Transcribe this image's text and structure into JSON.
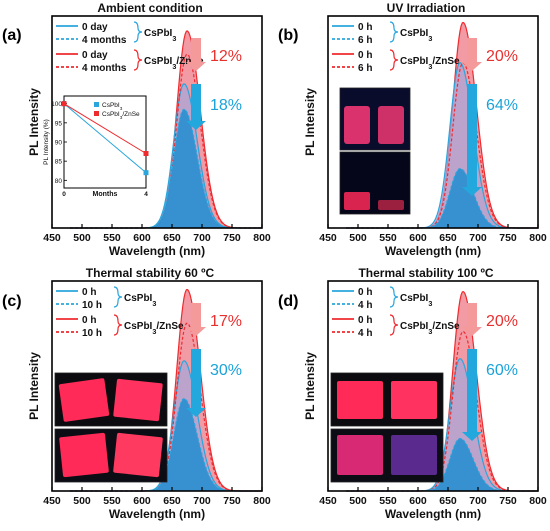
{
  "colors": {
    "cspbi3": "#2aa6dc",
    "cspbi3_fill": "#2f8fd0",
    "cspbi3_zns": "#ee2b2f",
    "cspbi3_zns_fill": "#f08a94",
    "arrow_red": "#f59a9a",
    "arrow_blue": "#22a8dc",
    "pct_red": "#e8302f",
    "pct_blue": "#1aa3d9"
  },
  "chart_data": [
    {
      "panel_label": "(a)",
      "type": "line",
      "title": "Ambient condition",
      "xlabel": "Wavelength (nm)",
      "ylabel": "PL Intensity",
      "xlim": [
        450,
        800
      ],
      "xticks": [
        "450",
        "500",
        "550",
        "600",
        "650",
        "700",
        "750",
        "800"
      ],
      "legend": [
        {
          "label": "0 day",
          "style": "solid",
          "color": "blue"
        },
        {
          "label": "4 months",
          "style": "dashed",
          "color": "blue"
        },
        {
          "label": "0 day",
          "style": "solid",
          "color": "red"
        },
        {
          "label": "4 months",
          "style": "dashed",
          "color": "red"
        }
      ],
      "groups": [
        "CsPbI3",
        "CsPbI3/ZnSe"
      ],
      "group_html": [
        "CsPbI<tspan baseline-shift=\"sub\" font-size=\"7\">3</tspan>",
        "CsPbI<tspan baseline-shift=\"sub\" font-size=\"7\">3</tspan>/ZnSe"
      ],
      "series": [
        {
          "group": "CsPbI3",
          "state": "initial",
          "peak_x": 670,
          "peak_y": 0.68
        },
        {
          "group": "CsPbI3",
          "state": "aged",
          "peak_x": 670,
          "peak_y": 0.56
        },
        {
          "group": "CsPbI3/ZnSe",
          "state": "initial",
          "peak_x": 675,
          "peak_y": 0.93
        },
        {
          "group": "CsPbI3/ZnSe",
          "state": "aged",
          "peak_x": 675,
          "peak_y": 0.82
        }
      ],
      "red_percent": "12%",
      "blue_percent": "18%",
      "inset": {
        "xlabel": "Months",
        "ylabel": "PL Intensity (%)",
        "xticks": [
          "0",
          "4"
        ],
        "yticks": [
          "80",
          "85",
          "90",
          "95",
          "100"
        ],
        "ylim": [
          78,
          102
        ],
        "series": [
          {
            "name": "CsPbI3",
            "x": [
              0,
              4
            ],
            "y": [
              100,
              82
            ]
          },
          {
            "name": "CsPbI3/ZnSe",
            "x": [
              0,
              4
            ],
            "y": [
              100,
              87
            ]
          }
        ]
      }
    },
    {
      "panel_label": "(b)",
      "type": "line",
      "title": "UV Irradiation",
      "xlabel": "Wavelength (nm)",
      "ylabel": "PL Intensity",
      "xlim": [
        450,
        800
      ],
      "xticks": [
        "450",
        "500",
        "550",
        "600",
        "650",
        "700",
        "750",
        "800"
      ],
      "legend": [
        {
          "label": "0 h",
          "style": "solid",
          "color": "blue"
        },
        {
          "label": "6 h",
          "style": "dashed",
          "color": "blue"
        },
        {
          "label": "0 h",
          "style": "solid",
          "color": "red"
        },
        {
          "label": "6 h",
          "style": "dashed",
          "color": "red"
        }
      ],
      "groups": [
        "CsPbI3",
        "CsPbI3/ZnSe"
      ],
      "series": [
        {
          "group": "CsPbI3",
          "state": "initial",
          "peak_x": 670,
          "peak_y": 0.78
        },
        {
          "group": "CsPbI3",
          "state": "aged",
          "peak_x": 670,
          "peak_y": 0.28
        },
        {
          "group": "CsPbI3/ZnSe",
          "state": "initial",
          "peak_x": 675,
          "peak_y": 0.97
        },
        {
          "group": "CsPbI3/ZnSe",
          "state": "aged",
          "peak_x": 675,
          "peak_y": 0.78
        }
      ],
      "red_percent": "20%",
      "blue_percent": "64%"
    },
    {
      "panel_label": "(c)",
      "type": "line",
      "title": "Thermal stability 60 ºC",
      "xlabel": "Wavelength (nm)",
      "ylabel": "PL Intensity",
      "xlim": [
        450,
        800
      ],
      "xticks": [
        "450",
        "500",
        "550",
        "600",
        "650",
        "700",
        "750",
        "800"
      ],
      "legend": [
        {
          "label": "0 h",
          "style": "solid",
          "color": "blue"
        },
        {
          "label": "10 h",
          "style": "dashed",
          "color": "blue"
        },
        {
          "label": "0 h",
          "style": "solid",
          "color": "red"
        },
        {
          "label": "10 h",
          "style": "dashed",
          "color": "red"
        }
      ],
      "groups": [
        "CsPbI3",
        "CsPbI3/ZnSe"
      ],
      "series": [
        {
          "group": "CsPbI3",
          "state": "initial",
          "peak_x": 670,
          "peak_y": 0.62
        },
        {
          "group": "CsPbI3",
          "state": "aged",
          "peak_x": 670,
          "peak_y": 0.44
        },
        {
          "group": "CsPbI3/ZnSe",
          "state": "initial",
          "peak_x": 675,
          "peak_y": 0.96
        },
        {
          "group": "CsPbI3/ZnSe",
          "state": "aged",
          "peak_x": 675,
          "peak_y": 0.8
        }
      ],
      "red_percent": "17%",
      "blue_percent": "30%"
    },
    {
      "panel_label": "(d)",
      "type": "line",
      "title": "Thermal stability 100 ºC",
      "xlabel": "Wavelength (nm)",
      "ylabel": "PL Intensity",
      "xlim": [
        450,
        800
      ],
      "xticks": [
        "450",
        "500",
        "550",
        "600",
        "650",
        "700",
        "750",
        "800"
      ],
      "legend": [
        {
          "label": "0 h",
          "style": "solid",
          "color": "blue"
        },
        {
          "label": "4 h",
          "style": "dashed",
          "color": "blue"
        },
        {
          "label": "0 h",
          "style": "solid",
          "color": "red"
        },
        {
          "label": "4 h",
          "style": "dashed",
          "color": "red"
        }
      ],
      "groups": [
        "CsPbI3",
        "CsPbI3/ZnSe"
      ],
      "series": [
        {
          "group": "CsPbI3",
          "state": "initial",
          "peak_x": 670,
          "peak_y": 0.63
        },
        {
          "group": "CsPbI3",
          "state": "aged",
          "peak_x": 670,
          "peak_y": 0.25
        },
        {
          "group": "CsPbI3/ZnSe",
          "state": "initial",
          "peak_x": 675,
          "peak_y": 0.95
        },
        {
          "group": "CsPbI3/ZnSe",
          "state": "aged",
          "peak_x": 675,
          "peak_y": 0.76
        }
      ],
      "red_percent": "20%",
      "blue_percent": "60%"
    }
  ]
}
